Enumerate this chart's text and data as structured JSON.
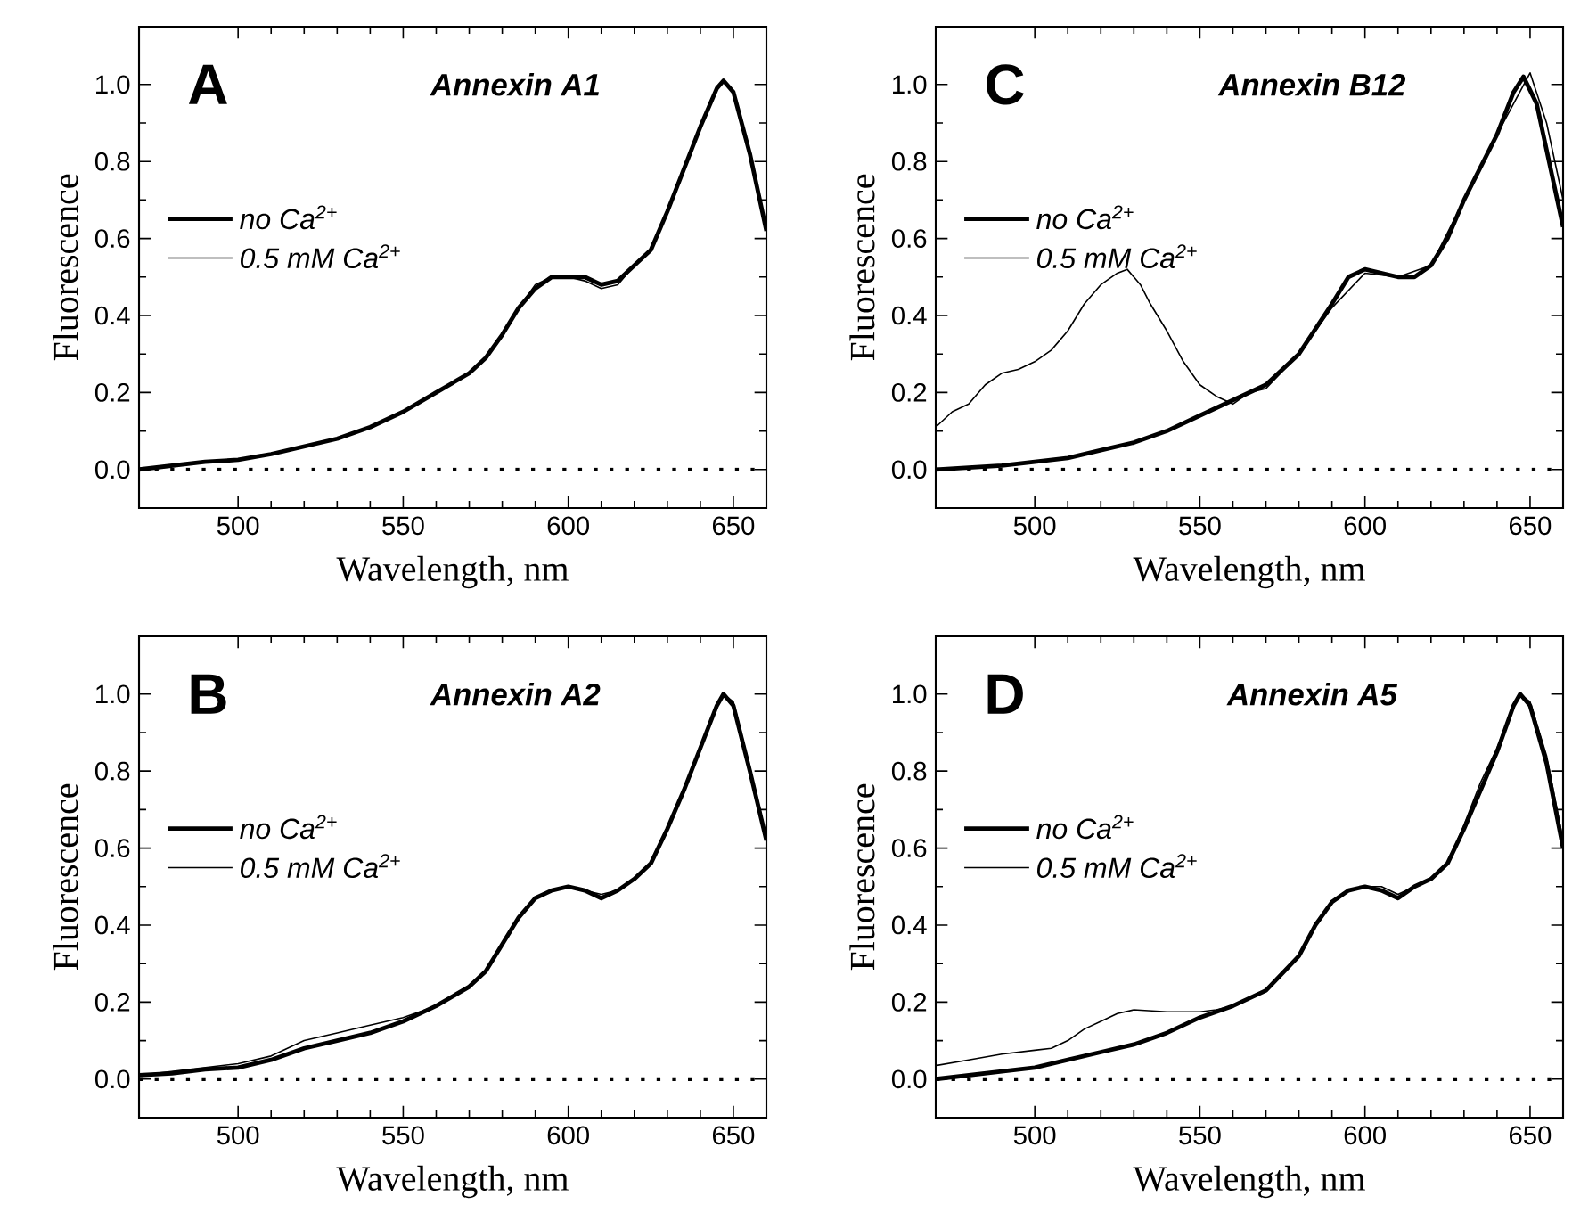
{
  "chart_data": [
    {
      "type": "line",
      "title": "Annexin A1",
      "annotations": [
        "A"
      ],
      "xlabel": "Wavelength, nm",
      "ylabel": "Fluorescence",
      "xlim": [
        470,
        660
      ],
      "ylim": [
        -0.1,
        1.15
      ],
      "xticks": [
        500,
        550,
        600,
        650
      ],
      "yticks": [
        {
          "value": 0,
          "label": "0.0"
        },
        {
          "value": 0.2,
          "label": "0.2"
        },
        {
          "value": 0.4,
          "label": "0.4"
        },
        {
          "value": 0.6,
          "label": "0.6"
        },
        {
          "value": 0.8,
          "label": "0.8"
        },
        {
          "value": 1.0,
          "label": "1.0"
        }
      ],
      "legend": "left",
      "ref_lines": [
        {
          "axis": "y",
          "value": 0,
          "color": "#000000",
          "line_style": "dotted"
        }
      ],
      "series": [
        {
          "name": "no Ca$^{2+}$",
          "color": "#000000",
          "x": [
            470,
            480,
            490,
            500,
            510,
            520,
            530,
            540,
            550,
            560,
            570,
            575,
            580,
            585,
            590,
            595,
            600,
            605,
            610,
            615,
            620,
            625,
            630,
            635,
            640,
            645,
            647,
            650,
            655,
            660
          ],
          "values": [
            0.0,
            0.01,
            0.02,
            0.025,
            0.04,
            0.06,
            0.08,
            0.11,
            0.15,
            0.2,
            0.25,
            0.29,
            0.35,
            0.42,
            0.47,
            0.5,
            0.5,
            0.5,
            0.48,
            0.49,
            0.53,
            0.57,
            0.67,
            0.78,
            0.89,
            0.99,
            1.01,
            0.98,
            0.82,
            0.62
          ]
        },
        {
          "name": "0.5 mM Ca$^{2+}$",
          "color": "#000000",
          "x": [
            470,
            480,
            490,
            500,
            510,
            520,
            530,
            540,
            550,
            560,
            570,
            575,
            580,
            585,
            590,
            595,
            600,
            605,
            610,
            615,
            620,
            625,
            630,
            635,
            640,
            645,
            647,
            650,
            655,
            660
          ],
          "values": [
            0.0,
            0.01,
            0.02,
            0.025,
            0.04,
            0.06,
            0.08,
            0.11,
            0.15,
            0.2,
            0.25,
            0.29,
            0.35,
            0.42,
            0.48,
            0.5,
            0.5,
            0.49,
            0.47,
            0.48,
            0.53,
            0.57,
            0.67,
            0.78,
            0.89,
            0.99,
            1.01,
            0.98,
            0.82,
            0.62
          ]
        }
      ]
    },
    {
      "type": "line",
      "title": "Annexin B12",
      "annotations": [
        "C"
      ],
      "xlabel": "Wavelength, nm",
      "ylabel": "Fluorescence",
      "xlim": [
        470,
        660
      ],
      "ylim": [
        -0.1,
        1.15
      ],
      "xticks": [
        500,
        550,
        600,
        650
      ],
      "yticks": [
        {
          "value": 0,
          "label": "0.0"
        },
        {
          "value": 0.2,
          "label": "0.2"
        },
        {
          "value": 0.4,
          "label": "0.4"
        },
        {
          "value": 0.6,
          "label": "0.6"
        },
        {
          "value": 0.8,
          "label": "0.8"
        },
        {
          "value": 1.0,
          "label": "1.0"
        }
      ],
      "legend": "left",
      "ref_lines": [
        {
          "axis": "y",
          "value": 0,
          "color": "#000000",
          "line_style": "dotted"
        }
      ],
      "series": [
        {
          "name": "no Ca$^{2+}$",
          "color": "#000000",
          "x": [
            470,
            480,
            490,
            500,
            510,
            520,
            530,
            540,
            550,
            560,
            570,
            580,
            590,
            595,
            600,
            605,
            610,
            615,
            620,
            625,
            630,
            640,
            645,
            648,
            652,
            660
          ],
          "values": [
            0.0,
            0.005,
            0.01,
            0.02,
            0.03,
            0.05,
            0.07,
            0.1,
            0.14,
            0.18,
            0.22,
            0.3,
            0.43,
            0.5,
            0.52,
            0.51,
            0.5,
            0.5,
            0.53,
            0.6,
            0.7,
            0.87,
            0.98,
            1.02,
            0.95,
            0.63
          ]
        },
        {
          "name": "0.5 mM Ca$^{2+}$",
          "color": "#000000",
          "x": [
            470,
            475,
            480,
            485,
            490,
            495,
            500,
            505,
            510,
            515,
            520,
            525,
            528,
            532,
            535,
            540,
            545,
            550,
            555,
            560,
            565,
            570,
            580,
            590,
            600,
            610,
            620,
            630,
            640,
            650,
            655,
            660
          ],
          "values": [
            0.11,
            0.15,
            0.17,
            0.22,
            0.25,
            0.26,
            0.28,
            0.31,
            0.36,
            0.43,
            0.48,
            0.51,
            0.52,
            0.48,
            0.43,
            0.36,
            0.28,
            0.22,
            0.19,
            0.17,
            0.2,
            0.21,
            0.3,
            0.42,
            0.51,
            0.5,
            0.53,
            0.7,
            0.87,
            1.03,
            0.9,
            0.7
          ]
        }
      ]
    },
    {
      "type": "line",
      "title": "Annexin A2",
      "annotations": [
        "B"
      ],
      "xlabel": "Wavelength, nm",
      "ylabel": "Fluorescence",
      "xlim": [
        470,
        660
      ],
      "ylim": [
        -0.1,
        1.15
      ],
      "xticks": [
        500,
        550,
        600,
        650
      ],
      "yticks": [
        {
          "value": 0,
          "label": "0.0"
        },
        {
          "value": 0.2,
          "label": "0.2"
        },
        {
          "value": 0.4,
          "label": "0.4"
        },
        {
          "value": 0.6,
          "label": "0.6"
        },
        {
          "value": 0.8,
          "label": "0.8"
        },
        {
          "value": 1.0,
          "label": "1.0"
        }
      ],
      "legend": "left",
      "ref_lines": [
        {
          "axis": "y",
          "value": 0,
          "color": "#000000",
          "line_style": "dotted"
        }
      ],
      "series": [
        {
          "name": "no Ca$^{2+}$",
          "color": "#000000",
          "x": [
            470,
            480,
            490,
            500,
            510,
            520,
            530,
            540,
            550,
            560,
            570,
            575,
            580,
            585,
            590,
            595,
            600,
            605,
            610,
            615,
            620,
            625,
            630,
            635,
            640,
            645,
            647,
            650,
            655,
            660
          ],
          "values": [
            0.01,
            0.015,
            0.025,
            0.03,
            0.05,
            0.08,
            0.1,
            0.12,
            0.15,
            0.19,
            0.24,
            0.28,
            0.35,
            0.42,
            0.47,
            0.49,
            0.5,
            0.49,
            0.47,
            0.49,
            0.52,
            0.56,
            0.65,
            0.75,
            0.86,
            0.97,
            1.0,
            0.97,
            0.8,
            0.62
          ]
        },
        {
          "name": "0.5 mM Ca$^{2+}$",
          "color": "#000000",
          "x": [
            470,
            480,
            490,
            500,
            510,
            520,
            530,
            540,
            550,
            560,
            570,
            575,
            580,
            585,
            590,
            595,
            600,
            605,
            610,
            615,
            620,
            625,
            630,
            635,
            640,
            645,
            647,
            650,
            655,
            660
          ],
          "values": [
            0.01,
            0.02,
            0.03,
            0.04,
            0.06,
            0.1,
            0.12,
            0.14,
            0.16,
            0.19,
            0.24,
            0.28,
            0.35,
            0.42,
            0.47,
            0.49,
            0.5,
            0.49,
            0.48,
            0.49,
            0.52,
            0.56,
            0.65,
            0.75,
            0.86,
            0.97,
            1.0,
            0.98,
            0.81,
            0.63
          ]
        }
      ]
    },
    {
      "type": "line",
      "title": "Annexin A5",
      "annotations": [
        "D"
      ],
      "xlabel": "Wavelength, nm",
      "ylabel": "Fluorescence",
      "xlim": [
        470,
        660
      ],
      "ylim": [
        -0.1,
        1.15
      ],
      "xticks": [
        500,
        550,
        600,
        650
      ],
      "yticks": [
        {
          "value": 0,
          "label": "0.0"
        },
        {
          "value": 0.2,
          "label": "0.2"
        },
        {
          "value": 0.4,
          "label": "0.4"
        },
        {
          "value": 0.6,
          "label": "0.6"
        },
        {
          "value": 0.8,
          "label": "0.8"
        },
        {
          "value": 1.0,
          "label": "1.0"
        }
      ],
      "legend": "left",
      "ref_lines": [
        {
          "axis": "y",
          "value": 0,
          "color": "#000000",
          "line_style": "dotted"
        }
      ],
      "series": [
        {
          "name": "no Ca$^{2+}$",
          "color": "#000000",
          "x": [
            470,
            490,
            500,
            510,
            520,
            530,
            540,
            550,
            560,
            570,
            580,
            585,
            590,
            595,
            600,
            605,
            610,
            615,
            620,
            625,
            630,
            635,
            640,
            645,
            647,
            650,
            655,
            660
          ],
          "values": [
            0.0,
            0.02,
            0.03,
            0.05,
            0.07,
            0.09,
            0.12,
            0.16,
            0.19,
            0.23,
            0.32,
            0.4,
            0.46,
            0.49,
            0.5,
            0.49,
            0.47,
            0.5,
            0.52,
            0.56,
            0.65,
            0.75,
            0.85,
            0.97,
            1.0,
            0.97,
            0.82,
            0.6
          ]
        },
        {
          "name": "0.5 mM Ca$^{2+}$",
          "color": "#000000",
          "x": [
            470,
            480,
            490,
            500,
            505,
            510,
            515,
            520,
            525,
            530,
            540,
            550,
            555,
            560,
            570,
            580,
            585,
            590,
            595,
            600,
            605,
            610,
            615,
            620,
            625,
            630,
            635,
            640,
            645,
            647,
            650,
            655,
            660
          ],
          "values": [
            0.035,
            0.05,
            0.065,
            0.075,
            0.08,
            0.1,
            0.13,
            0.15,
            0.17,
            0.18,
            0.175,
            0.175,
            0.18,
            0.19,
            0.23,
            0.32,
            0.4,
            0.46,
            0.49,
            0.5,
            0.5,
            0.48,
            0.5,
            0.52,
            0.56,
            0.66,
            0.77,
            0.86,
            0.97,
            1.0,
            0.98,
            0.84,
            0.62
          ]
        }
      ]
    }
  ]
}
